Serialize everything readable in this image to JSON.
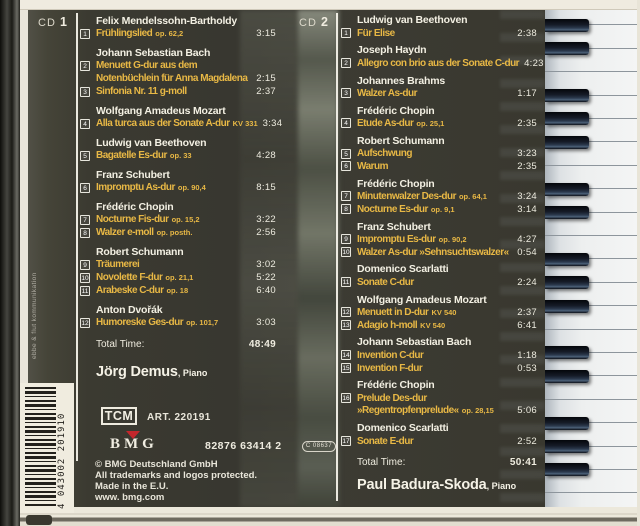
{
  "cover": {
    "side_label_text": "ebbe & flut kommunikation",
    "barcode_digits": "4 043002 201910",
    "colors": {
      "accent_yellow": "#e8b845",
      "red_triangle": "#c4262c",
      "panel": "#3b3a31"
    },
    "cd1": {
      "header_prefix": "CD ",
      "header_num": "1",
      "groups": [
        {
          "composer": "Felix Mendelssohn-Bartholdy",
          "tracks": [
            {
              "num": "1",
              "lines": [
                {
                  "main": "Frühlingslied",
                  "suffix": "op. 62,2"
                }
              ],
              "time": "3:15"
            }
          ]
        },
        {
          "composer": "Johann Sebastian Bach",
          "tracks": [
            {
              "num": "2",
              "lines": [
                {
                  "main": "Menuett G-dur aus dem"
                },
                {
                  "main": "Notenbüchlein für Anna Magdalena"
                }
              ],
              "time": "2:15"
            },
            {
              "num": "3",
              "lines": [
                {
                  "main": "Sinfonia Nr. 11 g-moll"
                }
              ],
              "time": "2:37"
            }
          ]
        },
        {
          "composer": "Wolfgang Amadeus Mozart",
          "tracks": [
            {
              "num": "4",
              "lines": [
                {
                  "main": "Alla turca aus der Sonate A-dur",
                  "suffix": "KV 331"
                }
              ],
              "time": "3:34"
            }
          ]
        },
        {
          "composer": "Ludwig van Beethoven",
          "tracks": [
            {
              "num": "5",
              "lines": [
                {
                  "main": "Bagatelle Es-dur",
                  "suffix": "op. 33"
                }
              ],
              "time": "4:28"
            }
          ]
        },
        {
          "composer": "Franz Schubert",
          "tracks": [
            {
              "num": "6",
              "lines": [
                {
                  "main": "Impromptu As-dur",
                  "suffix": "op. 90,4"
                }
              ],
              "time": "8:15"
            }
          ]
        },
        {
          "composer": "Frédéric Chopin",
          "tracks": [
            {
              "num": "7",
              "lines": [
                {
                  "main": "Nocturne Fis-dur",
                  "suffix": "op. 15,2"
                }
              ],
              "time": "3:22"
            },
            {
              "num": "8",
              "lines": [
                {
                  "main": "Walzer e-moll",
                  "suffix": "op. posth."
                }
              ],
              "time": "2:56"
            }
          ]
        },
        {
          "composer": "Robert Schumann",
          "tracks": [
            {
              "num": "9",
              "lines": [
                {
                  "main": "Träumerei"
                }
              ],
              "time": "3:02"
            },
            {
              "num": "10",
              "lines": [
                {
                  "main": "Novolette F-dur",
                  "suffix": "op. 21,1"
                }
              ],
              "time": "5:22"
            },
            {
              "num": "11",
              "lines": [
                {
                  "main": "Arabeske C-dur",
                  "suffix": "op. 18"
                }
              ],
              "time": "6:40"
            }
          ]
        },
        {
          "composer": "Anton Dvořák",
          "tracks": [
            {
              "num": "12",
              "lines": [
                {
                  "main": "Humoreske Ges-dur",
                  "suffix": "op. 101,7"
                }
              ],
              "time": "3:03"
            }
          ]
        }
      ],
      "total_label": "Total Time:",
      "total_time": "48:49",
      "artist_name": "Jörg Demus",
      "artist_role": ", Piano"
    },
    "cd2": {
      "header_prefix": "CD ",
      "header_num": "2",
      "groups": [
        {
          "composer": "Ludwig van Beethoven",
          "tracks": [
            {
              "num": "1",
              "lines": [
                {
                  "main": "Für Elise"
                }
              ],
              "time": "2:38"
            }
          ]
        },
        {
          "composer": "Joseph Haydn",
          "tracks": [
            {
              "num": "2",
              "lines": [
                {
                  "main": "Allegro con brio aus der Sonate C-dur"
                }
              ],
              "time": "4:23"
            }
          ]
        },
        {
          "composer": "Johannes Brahms",
          "tracks": [
            {
              "num": "3",
              "lines": [
                {
                  "main": "Walzer As-dur"
                }
              ],
              "time": "1:17"
            }
          ]
        },
        {
          "composer": "Frédéric Chopin",
          "tracks": [
            {
              "num": "4",
              "lines": [
                {
                  "main": "Etude As-dur",
                  "suffix": "op. 25,1"
                }
              ],
              "time": "2:35"
            }
          ]
        },
        {
          "composer": "Robert Schumann",
          "tracks": [
            {
              "num": "5",
              "lines": [
                {
                  "main": "Aufschwung"
                }
              ],
              "time": "3:23"
            },
            {
              "num": "6",
              "lines": [
                {
                  "main": "Warum"
                }
              ],
              "time": "2:35"
            }
          ]
        },
        {
          "composer": "Frédéric Chopin",
          "tracks": [
            {
              "num": "7",
              "lines": [
                {
                  "main": "Minutenwalzer Des-dur",
                  "suffix": "op. 64,1"
                }
              ],
              "time": "3:24"
            },
            {
              "num": "8",
              "lines": [
                {
                  "main": "Nocturne Es-dur",
                  "suffix": "op. 9,1"
                }
              ],
              "time": "3:14"
            }
          ]
        },
        {
          "composer": "Franz Schubert",
          "tracks": [
            {
              "num": "9",
              "lines": [
                {
                  "main": "Impromptu Es-dur",
                  "suffix": "op. 90,2"
                }
              ],
              "time": "4:27"
            },
            {
              "num": "10",
              "lines": [
                {
                  "main": "Walzer As-dur »Sehnsuchtswalzer«"
                }
              ],
              "time": "0:54"
            }
          ]
        },
        {
          "composer": "Domenico Scarlatti",
          "tracks": [
            {
              "num": "11",
              "lines": [
                {
                  "main": "Sonate C-dur"
                }
              ],
              "time": "2:24"
            }
          ]
        },
        {
          "composer": "Wolfgang Amadeus Mozart",
          "tracks": [
            {
              "num": "12",
              "lines": [
                {
                  "main": "Menuett in D-dur",
                  "suffix": "KV 540"
                }
              ],
              "time": "2:37"
            },
            {
              "num": "13",
              "lines": [
                {
                  "main": "Adagio h-moll",
                  "suffix": "KV 540"
                }
              ],
              "time": "6:41"
            }
          ]
        },
        {
          "composer": "Johann Sebastian Bach",
          "tracks": [
            {
              "num": "14",
              "lines": [
                {
                  "main": "Invention C-dur"
                }
              ],
              "time": "1:18"
            },
            {
              "num": "15",
              "lines": [
                {
                  "main": "Invention F-dur"
                }
              ],
              "time": "0:53"
            }
          ]
        },
        {
          "composer": "Frédéric Chopin",
          "tracks": [
            {
              "num": "16",
              "lines": [
                {
                  "main": "Prelude Des-dur"
                },
                {
                  "main": "»Regentropfenprelude«",
                  "suffix": "op. 28,15"
                }
              ],
              "time": "5:06"
            }
          ]
        },
        {
          "composer": "Domenico Scarlatti",
          "tracks": [
            {
              "num": "17",
              "lines": [
                {
                  "main": "Sonate E-dur"
                }
              ],
              "time": "2:52"
            }
          ]
        }
      ],
      "total_label": "Total Time:",
      "total_time": "50:41",
      "artist_name": "Paul Badura-Skoda",
      "artist_role": ", Piano"
    },
    "footer": {
      "tcm_logo": "TCM",
      "art_no": "ART. 220191",
      "bmg_logo": "BMG",
      "catalog_no": "82876 63414 2",
      "badge_text": "C 08637",
      "copyright_lines": [
        "© BMG Deutschland GmbH",
        "All trademarks and logos protected.",
        "Made in the E.U.",
        "www. bmg.com"
      ]
    }
  }
}
